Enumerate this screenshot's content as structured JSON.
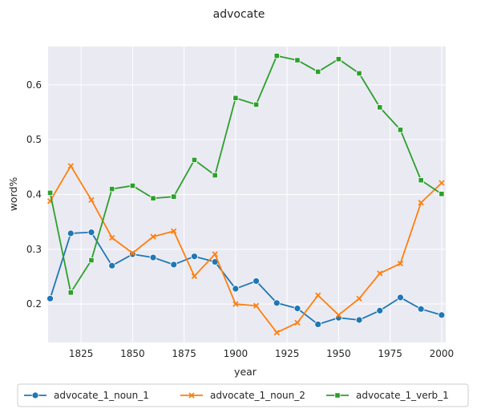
{
  "chart_data": {
    "type": "line",
    "title": "advocate",
    "xlabel": "year",
    "ylabel": "word%",
    "xlim": [
      1809,
      2002
    ],
    "ylim": [
      0.13,
      0.67
    ],
    "xticks": [
      1825,
      1850,
      1875,
      1900,
      1925,
      1950,
      1975,
      2000
    ],
    "yticks": [
      0.2,
      0.3,
      0.4,
      0.5,
      0.6
    ],
    "x": [
      1810,
      1820,
      1830,
      1840,
      1850,
      1860,
      1870,
      1880,
      1890,
      1900,
      1910,
      1920,
      1930,
      1940,
      1950,
      1960,
      1970,
      1980,
      1990,
      2000
    ],
    "grid": true,
    "legend_position": "bottom",
    "series": [
      {
        "name": "advocate_1_noun_1",
        "color": "#1f77b4",
        "marker": "circle",
        "values": [
          0.21,
          0.329,
          0.331,
          0.27,
          0.291,
          0.285,
          0.272,
          0.287,
          0.277,
          0.228,
          0.242,
          0.202,
          0.192,
          0.163,
          0.175,
          0.171,
          0.188,
          0.212,
          0.191,
          0.18
        ]
      },
      {
        "name": "advocate_1_noun_2",
        "color": "#ff7f0e",
        "marker": "x",
        "values": [
          0.388,
          0.452,
          0.39,
          0.321,
          0.293,
          0.323,
          0.333,
          0.251,
          0.291,
          0.2,
          0.197,
          0.148,
          0.166,
          0.216,
          0.18,
          0.21,
          0.256,
          0.274,
          0.385,
          0.421
        ]
      },
      {
        "name": "advocate_1_verb_1",
        "color": "#2ca02c",
        "marker": "square",
        "values": [
          0.403,
          0.221,
          0.28,
          0.41,
          0.416,
          0.393,
          0.396,
          0.463,
          0.435,
          0.576,
          0.564,
          0.653,
          0.645,
          0.624,
          0.647,
          0.621,
          0.559,
          0.518,
          0.426,
          0.401
        ]
      }
    ]
  }
}
